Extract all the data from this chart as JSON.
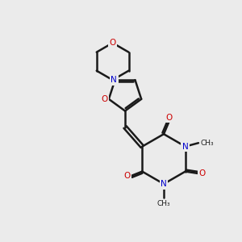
{
  "background_color": "#ebebeb",
  "bond_color": "#1a1a1a",
  "oxygen_color": "#cc0000",
  "nitrogen_color": "#0000cc",
  "lw": 1.8,
  "figsize": [
    3.0,
    3.0
  ],
  "dpi": 100,
  "xlim": [
    0,
    10
  ],
  "ylim": [
    0,
    10
  ]
}
